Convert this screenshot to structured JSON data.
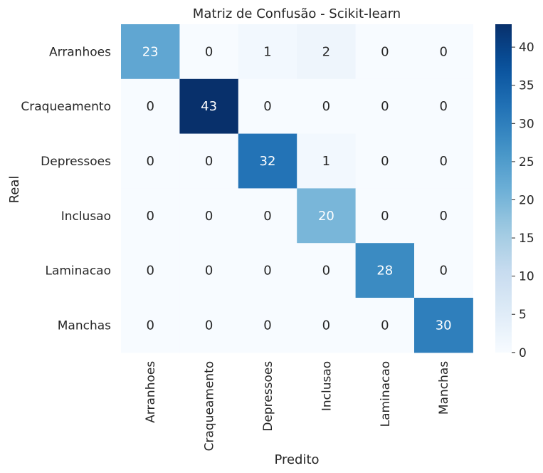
{
  "chart_data": {
    "type": "heatmap",
    "title": "Matriz de Confusão - Scikit-learn",
    "xlabel": "Predito",
    "ylabel": "Real",
    "x_categories": [
      "Arranhoes",
      "Craqueamento",
      "Depressoes",
      "Inclusao",
      "Laminacao",
      "Manchas"
    ],
    "y_categories": [
      "Arranhoes",
      "Craqueamento",
      "Depressoes",
      "Inclusao",
      "Laminacao",
      "Manchas"
    ],
    "values": [
      [
        23,
        0,
        1,
        2,
        0,
        0
      ],
      [
        0,
        43,
        0,
        0,
        0,
        0
      ],
      [
        0,
        0,
        32,
        1,
        0,
        0
      ],
      [
        0,
        0,
        0,
        20,
        0,
        0
      ],
      [
        0,
        0,
        0,
        0,
        28,
        0
      ],
      [
        0,
        0,
        0,
        0,
        0,
        30
      ]
    ],
    "colorbar": {
      "colormap": "Blues",
      "range": [
        0,
        43
      ],
      "ticks": [
        0,
        5,
        10,
        15,
        20,
        25,
        30,
        35,
        40
      ]
    },
    "colors": {
      "low": "#f7fbff",
      "high": "#08306b",
      "text_dark": "#262626",
      "text_light": "#ffffff"
    }
  }
}
